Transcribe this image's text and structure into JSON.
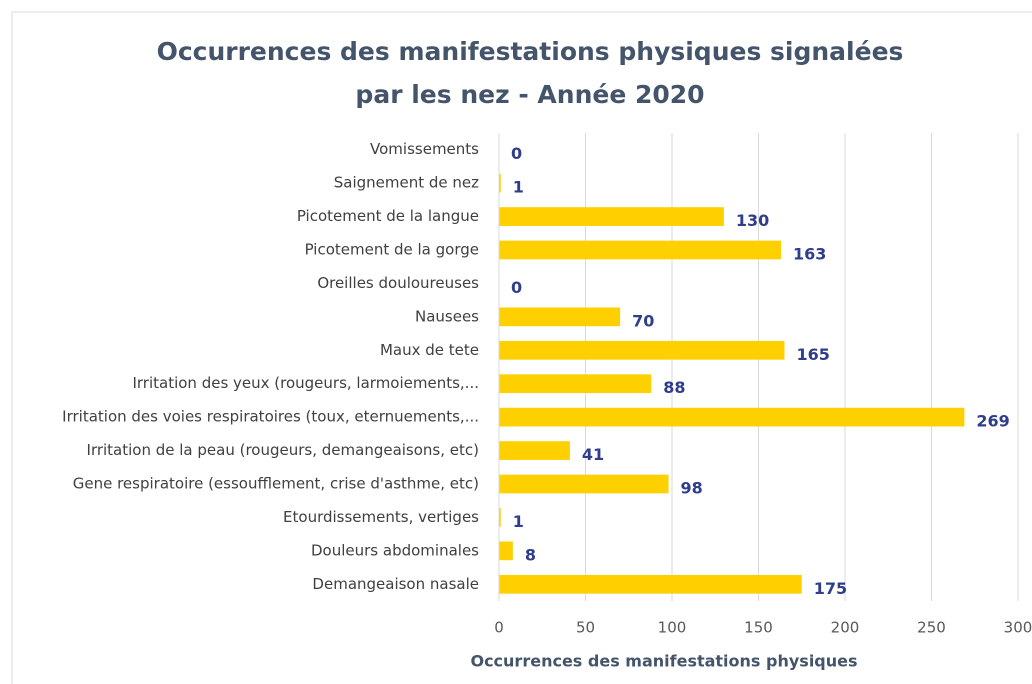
{
  "chart_data": {
    "type": "bar",
    "orientation": "horizontal",
    "title": [
      "Occurrences des manifestations physiques signalées",
      "par les nez - Année 2020"
    ],
    "x_label": "Occurrences des manifestations physiques",
    "categories": [
      "Vomissements",
      "Saignement de nez",
      "Picotement de la langue",
      "Picotement de la gorge",
      "Oreilles douloureuses",
      "Nausees",
      "Maux de tete",
      "Irritation des yeux (rougeurs, larmoiements,...",
      "Irritation des voies respiratoires (toux, eternuements,...",
      "Irritation de la peau (rougeurs, demangeaisons, etc)",
      "Gene respiratoire (essoufflement, crise d'asthme, etc)",
      "Etourdissements, vertiges",
      "Douleurs abdominales",
      "Demangeaison nasale"
    ],
    "values": [
      0,
      1,
      130,
      163,
      0,
      70,
      165,
      88,
      269,
      41,
      98,
      1,
      8,
      175
    ],
    "color": "#ffd000",
    "label_color": "#2f3d8c",
    "xlim": [
      0,
      300
    ],
    "xticks": [
      0,
      50,
      100,
      150,
      200,
      250,
      300
    ],
    "grid": true
  }
}
